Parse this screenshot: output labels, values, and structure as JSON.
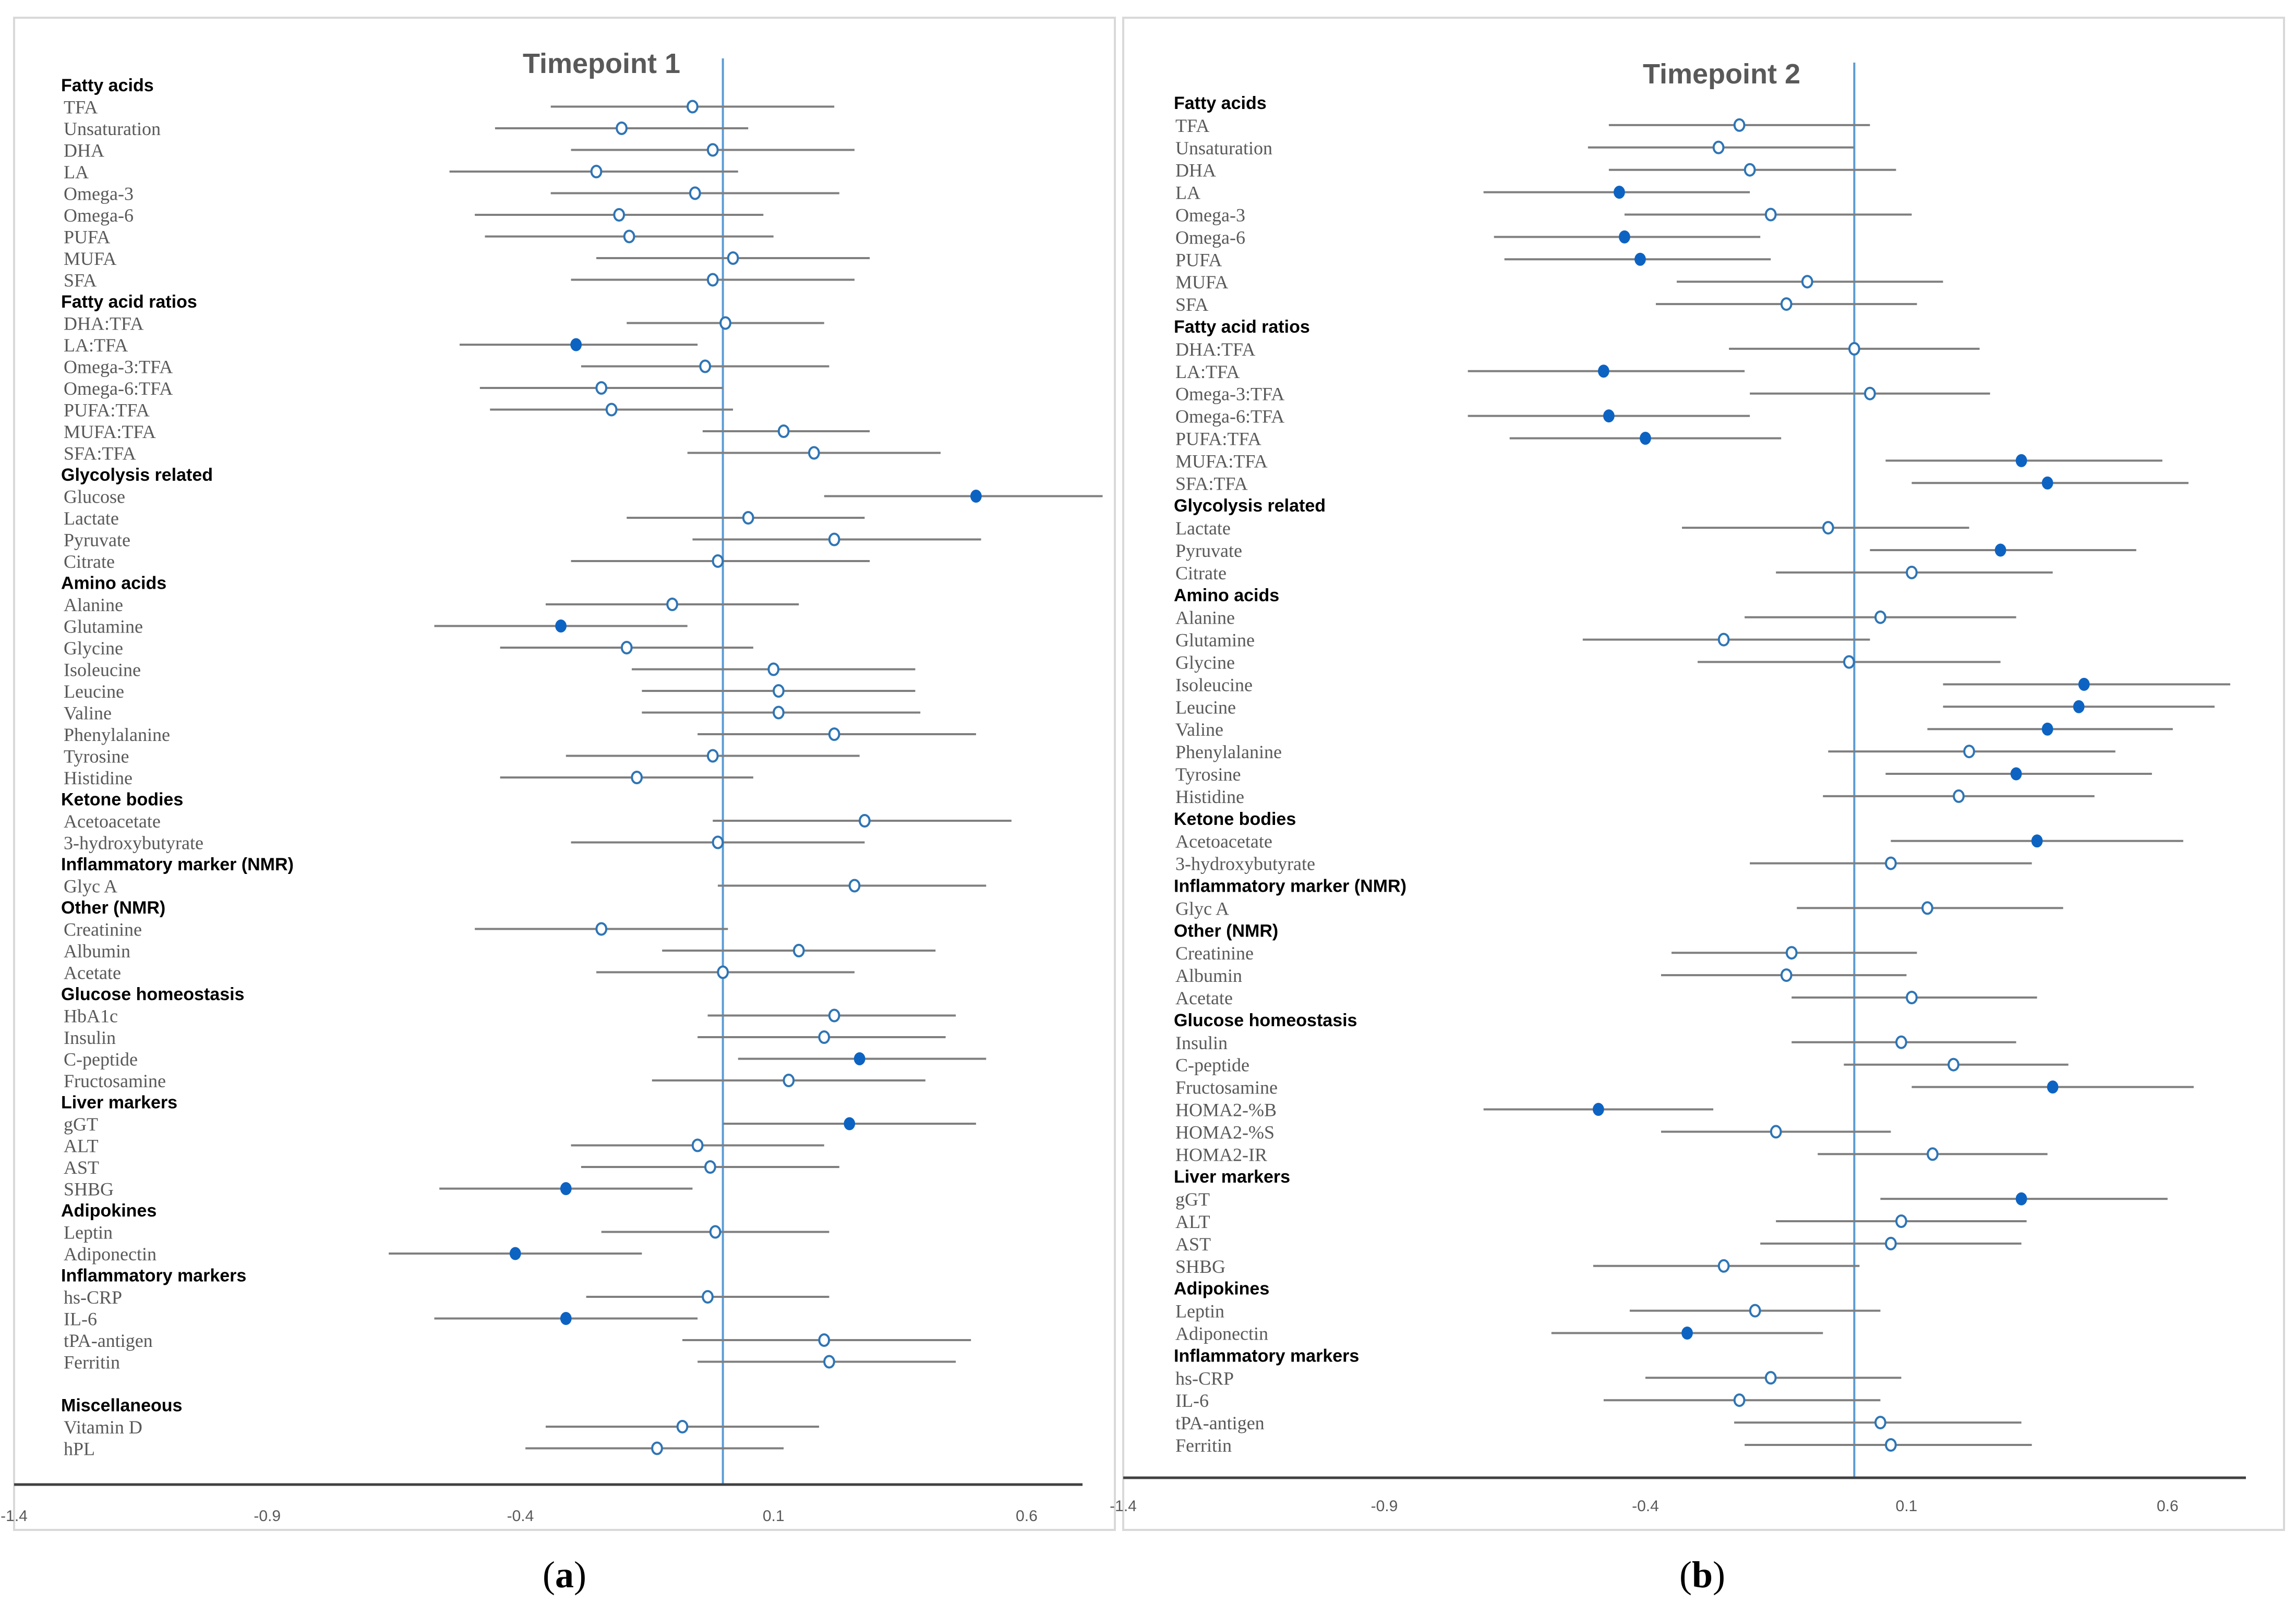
{
  "chart_data": [
    {
      "type": "forest",
      "panel_label": "a",
      "title": "Timepoint 1",
      "xlim": [
        -1.4,
        0.8
      ],
      "xticks": [
        "-1.4",
        "-0.9",
        "-0.4",
        "0.1",
        "0.6"
      ],
      "reference_line": 0.0,
      "rows": [
        {
          "kind": "group",
          "label": "Fatty acids"
        },
        {
          "kind": "row",
          "label": "TFA",
          "est": -0.06,
          "lo": -0.34,
          "hi": 0.22,
          "sig": false
        },
        {
          "kind": "row",
          "label": "Unsaturation",
          "est": -0.2,
          "lo": -0.45,
          "hi": 0.05,
          "sig": false
        },
        {
          "kind": "row",
          "label": "DHA",
          "est": -0.02,
          "lo": -0.3,
          "hi": 0.26,
          "sig": false
        },
        {
          "kind": "row",
          "label": "LA",
          "est": -0.25,
          "lo": -0.54,
          "hi": 0.03,
          "sig": false
        },
        {
          "kind": "row",
          "label": "Omega-3",
          "est": -0.055,
          "lo": -0.34,
          "hi": 0.23,
          "sig": false
        },
        {
          "kind": "row",
          "label": "Omega-6",
          "est": -0.205,
          "lo": -0.49,
          "hi": 0.08,
          "sig": false
        },
        {
          "kind": "row",
          "label": "PUFA",
          "est": -0.185,
          "lo": -0.47,
          "hi": 0.1,
          "sig": false
        },
        {
          "kind": "row",
          "label": "MUFA",
          "est": 0.02,
          "lo": -0.25,
          "hi": 0.29,
          "sig": false
        },
        {
          "kind": "row",
          "label": "SFA",
          "est": -0.02,
          "lo": -0.3,
          "hi": 0.26,
          "sig": false
        },
        {
          "kind": "group",
          "label": "Fatty acid ratios"
        },
        {
          "kind": "row",
          "label": "DHA:TFA",
          "est": 0.005,
          "lo": -0.19,
          "hi": 0.2,
          "sig": false
        },
        {
          "kind": "row",
          "label": "LA:TFA",
          "est": -0.29,
          "lo": -0.52,
          "hi": -0.05,
          "sig": true
        },
        {
          "kind": "row",
          "label": "Omega-3:TFA",
          "est": -0.035,
          "lo": -0.28,
          "hi": 0.21,
          "sig": false
        },
        {
          "kind": "row",
          "label": "Omega-6:TFA",
          "est": -0.24,
          "lo": -0.48,
          "hi": 0.0,
          "sig": false
        },
        {
          "kind": "row",
          "label": "PUFA:TFA",
          "est": -0.22,
          "lo": -0.46,
          "hi": 0.02,
          "sig": false
        },
        {
          "kind": "row",
          "label": "MUFA:TFA",
          "est": 0.12,
          "lo": -0.04,
          "hi": 0.29,
          "sig": false
        },
        {
          "kind": "row",
          "label": "SFA:TFA",
          "est": 0.18,
          "lo": -0.07,
          "hi": 0.43,
          "sig": false
        },
        {
          "kind": "group",
          "label": "Glycolysis related"
        },
        {
          "kind": "row",
          "label": "Glucose",
          "est": 0.5,
          "lo": 0.2,
          "hi": 0.75,
          "sig": true
        },
        {
          "kind": "row",
          "label": "Lactate",
          "est": 0.05,
          "lo": -0.19,
          "hi": 0.28,
          "sig": false
        },
        {
          "kind": "row",
          "label": "Pyruvate",
          "est": 0.22,
          "lo": -0.06,
          "hi": 0.51,
          "sig": false
        },
        {
          "kind": "row",
          "label": "Citrate",
          "est": -0.01,
          "lo": -0.3,
          "hi": 0.29,
          "sig": false
        },
        {
          "kind": "group",
          "label": "Amino acids"
        },
        {
          "kind": "row",
          "label": "Alanine",
          "est": -0.1,
          "lo": -0.35,
          "hi": 0.15,
          "sig": false
        },
        {
          "kind": "row",
          "label": "Glutamine",
          "est": -0.32,
          "lo": -0.57,
          "hi": -0.07,
          "sig": true
        },
        {
          "kind": "row",
          "label": "Glycine",
          "est": -0.19,
          "lo": -0.44,
          "hi": 0.06,
          "sig": false
        },
        {
          "kind": "row",
          "label": "Isoleucine",
          "est": 0.1,
          "lo": -0.18,
          "hi": 0.38,
          "sig": false
        },
        {
          "kind": "row",
          "label": "Leucine",
          "est": 0.11,
          "lo": -0.16,
          "hi": 0.38,
          "sig": false
        },
        {
          "kind": "row",
          "label": "Valine",
          "est": 0.11,
          "lo": -0.16,
          "hi": 0.39,
          "sig": false
        },
        {
          "kind": "row",
          "label": "Phenylalanine",
          "est": 0.22,
          "lo": -0.05,
          "hi": 0.5,
          "sig": false
        },
        {
          "kind": "row",
          "label": "Tyrosine",
          "est": -0.02,
          "lo": -0.31,
          "hi": 0.27,
          "sig": false
        },
        {
          "kind": "row",
          "label": "Histidine",
          "est": -0.17,
          "lo": -0.44,
          "hi": 0.06,
          "sig": false
        },
        {
          "kind": "group",
          "label": "Ketone bodies"
        },
        {
          "kind": "row",
          "label": "Acetoacetate",
          "est": 0.28,
          "lo": -0.02,
          "hi": 0.57,
          "sig": false
        },
        {
          "kind": "row",
          "label": "3-hydroxybutyrate",
          "est": -0.01,
          "lo": -0.3,
          "hi": 0.28,
          "sig": false
        },
        {
          "kind": "group",
          "label": "Inflammatory marker (NMR)"
        },
        {
          "kind": "row",
          "label": "Glyc A",
          "est": 0.26,
          "lo": -0.01,
          "hi": 0.52,
          "sig": false
        },
        {
          "kind": "group",
          "label": "Other (NMR)"
        },
        {
          "kind": "row",
          "label": "Creatinine",
          "est": -0.24,
          "lo": -0.49,
          "hi": 0.01,
          "sig": false
        },
        {
          "kind": "row",
          "label": "Albumin",
          "est": 0.15,
          "lo": -0.12,
          "hi": 0.42,
          "sig": false
        },
        {
          "kind": "row",
          "label": "Acetate",
          "est": 0.0,
          "lo": -0.25,
          "hi": 0.26,
          "sig": false
        },
        {
          "kind": "group",
          "label": "Glucose homeostasis"
        },
        {
          "kind": "row",
          "label": "HbA1c",
          "est": 0.22,
          "lo": -0.03,
          "hi": 0.46,
          "sig": false
        },
        {
          "kind": "row",
          "label": "Insulin",
          "est": 0.2,
          "lo": -0.05,
          "hi": 0.44,
          "sig": false
        },
        {
          "kind": "row",
          "label": "C-peptide",
          "est": 0.27,
          "lo": 0.03,
          "hi": 0.52,
          "sig": true
        },
        {
          "kind": "row",
          "label": "Fructosamine",
          "est": 0.13,
          "lo": -0.14,
          "hi": 0.4,
          "sig": false
        },
        {
          "kind": "group",
          "label": "Liver markers"
        },
        {
          "kind": "row",
          "label": "gGT",
          "est": 0.25,
          "lo": 0.0,
          "hi": 0.5,
          "sig": true
        },
        {
          "kind": "row",
          "label": "ALT",
          "est": -0.05,
          "lo": -0.3,
          "hi": 0.2,
          "sig": false
        },
        {
          "kind": "row",
          "label": "AST",
          "est": -0.025,
          "lo": -0.28,
          "hi": 0.23,
          "sig": false
        },
        {
          "kind": "row",
          "label": "SHBG",
          "est": -0.31,
          "lo": -0.56,
          "hi": -0.06,
          "sig": true
        },
        {
          "kind": "group",
          "label": "Adipokines"
        },
        {
          "kind": "row",
          "label": "Leptin",
          "est": -0.015,
          "lo": -0.24,
          "hi": 0.21,
          "sig": false
        },
        {
          "kind": "row",
          "label": "Adiponectin",
          "est": -0.41,
          "lo": -0.66,
          "hi": -0.16,
          "sig": true
        },
        {
          "kind": "group",
          "label": "Inflammatory markers"
        },
        {
          "kind": "row",
          "label": "hs-CRP",
          "est": -0.03,
          "lo": -0.27,
          "hi": 0.21,
          "sig": false
        },
        {
          "kind": "row",
          "label": "IL-6",
          "est": -0.31,
          "lo": -0.57,
          "hi": -0.05,
          "sig": true
        },
        {
          "kind": "row",
          "label": "tPA-antigen",
          "est": 0.2,
          "lo": -0.08,
          "hi": 0.49,
          "sig": false
        },
        {
          "kind": "row",
          "label": "Ferritin",
          "est": 0.21,
          "lo": -0.05,
          "hi": 0.46,
          "sig": false
        },
        {
          "kind": "spacer"
        },
        {
          "kind": "group",
          "label": "Miscellaneous"
        },
        {
          "kind": "row",
          "label": "Vitamin D",
          "est": -0.08,
          "lo": -0.35,
          "hi": 0.19,
          "sig": false
        },
        {
          "kind": "row",
          "label": "hPL",
          "est": -0.13,
          "lo": -0.39,
          "hi": 0.12,
          "sig": false
        }
      ]
    },
    {
      "type": "forest",
      "panel_label": "b",
      "title": "Timepoint 2",
      "xlim": [
        -1.4,
        0.75
      ],
      "xticks": [
        "-1.4",
        "-0.9",
        "-0.4",
        "0.1",
        "0.6"
      ],
      "reference_line": 0.0,
      "rows": [
        {
          "kind": "group",
          "label": "Fatty acids"
        },
        {
          "kind": "row",
          "label": "TFA",
          "est": -0.22,
          "lo": -0.47,
          "hi": 0.03,
          "sig": false
        },
        {
          "kind": "row",
          "label": "Unsaturation",
          "est": -0.26,
          "lo": -0.51,
          "hi": 0.0,
          "sig": false
        },
        {
          "kind": "row",
          "label": "DHA",
          "est": -0.2,
          "lo": -0.47,
          "hi": 0.08,
          "sig": false
        },
        {
          "kind": "row",
          "label": "LA",
          "est": -0.45,
          "lo": -0.71,
          "hi": -0.2,
          "sig": true
        },
        {
          "kind": "row",
          "label": "Omega-3",
          "est": -0.16,
          "lo": -0.44,
          "hi": 0.11,
          "sig": false
        },
        {
          "kind": "row",
          "label": "Omega-6",
          "est": -0.44,
          "lo": -0.69,
          "hi": -0.18,
          "sig": true
        },
        {
          "kind": "row",
          "label": "PUFA",
          "est": -0.41,
          "lo": -0.67,
          "hi": -0.16,
          "sig": true
        },
        {
          "kind": "row",
          "label": "MUFA",
          "est": -0.09,
          "lo": -0.34,
          "hi": 0.17,
          "sig": false
        },
        {
          "kind": "row",
          "label": "SFA",
          "est": -0.13,
          "lo": -0.38,
          "hi": 0.12,
          "sig": false
        },
        {
          "kind": "group",
          "label": "Fatty acid ratios"
        },
        {
          "kind": "row",
          "label": "DHA:TFA",
          "est": 0.0,
          "lo": -0.24,
          "hi": 0.24,
          "sig": false
        },
        {
          "kind": "row",
          "label": "LA:TFA",
          "est": -0.48,
          "lo": -0.74,
          "hi": -0.21,
          "sig": true
        },
        {
          "kind": "row",
          "label": "Omega-3:TFA",
          "est": 0.03,
          "lo": -0.2,
          "hi": 0.26,
          "sig": false
        },
        {
          "kind": "row",
          "label": "Omega-6:TFA",
          "est": -0.47,
          "lo": -0.74,
          "hi": -0.2,
          "sig": true
        },
        {
          "kind": "row",
          "label": "PUFA:TFA",
          "est": -0.4,
          "lo": -0.66,
          "hi": -0.14,
          "sig": true
        },
        {
          "kind": "row",
          "label": "MUFA:TFA",
          "est": 0.32,
          "lo": 0.06,
          "hi": 0.59,
          "sig": true
        },
        {
          "kind": "row",
          "label": "SFA:TFA",
          "est": 0.37,
          "lo": 0.11,
          "hi": 0.64,
          "sig": true
        },
        {
          "kind": "group",
          "label": "Glycolysis related"
        },
        {
          "kind": "row",
          "label": "Lactate",
          "est": -0.05,
          "lo": -0.33,
          "hi": 0.22,
          "sig": false
        },
        {
          "kind": "row",
          "label": "Pyruvate",
          "est": 0.28,
          "lo": 0.03,
          "hi": 0.54,
          "sig": true
        },
        {
          "kind": "row",
          "label": "Citrate",
          "est": 0.11,
          "lo": -0.15,
          "hi": 0.38,
          "sig": false
        },
        {
          "kind": "group",
          "label": "Amino acids"
        },
        {
          "kind": "row",
          "label": "Alanine",
          "est": 0.05,
          "lo": -0.21,
          "hi": 0.31,
          "sig": false
        },
        {
          "kind": "row",
          "label": "Glutamine",
          "est": -0.25,
          "lo": -0.52,
          "hi": 0.03,
          "sig": false
        },
        {
          "kind": "row",
          "label": "Glycine",
          "est": -0.01,
          "lo": -0.3,
          "hi": 0.28,
          "sig": false
        },
        {
          "kind": "row",
          "label": "Isoleucine",
          "est": 0.44,
          "lo": 0.17,
          "hi": 0.72,
          "sig": true
        },
        {
          "kind": "row",
          "label": "Leucine",
          "est": 0.43,
          "lo": 0.17,
          "hi": 0.69,
          "sig": true
        },
        {
          "kind": "row",
          "label": "Valine",
          "est": 0.37,
          "lo": 0.14,
          "hi": 0.61,
          "sig": true
        },
        {
          "kind": "row",
          "label": "Phenylalanine",
          "est": 0.22,
          "lo": -0.05,
          "hi": 0.5,
          "sig": false
        },
        {
          "kind": "row",
          "label": "Tyrosine",
          "est": 0.31,
          "lo": 0.06,
          "hi": 0.57,
          "sig": true
        },
        {
          "kind": "row",
          "label": "Histidine",
          "est": 0.2,
          "lo": -0.06,
          "hi": 0.46,
          "sig": false
        },
        {
          "kind": "group",
          "label": "Ketone bodies"
        },
        {
          "kind": "row",
          "label": "Acetoacetate",
          "est": 0.35,
          "lo": 0.07,
          "hi": 0.63,
          "sig": true
        },
        {
          "kind": "row",
          "label": "3-hydroxybutyrate",
          "est": 0.07,
          "lo": -0.2,
          "hi": 0.34,
          "sig": false
        },
        {
          "kind": "group",
          "label": "Inflammatory marker (NMR)"
        },
        {
          "kind": "row",
          "label": "Glyc A",
          "est": 0.14,
          "lo": -0.11,
          "hi": 0.4,
          "sig": false
        },
        {
          "kind": "group",
          "label": "Other (NMR)"
        },
        {
          "kind": "row",
          "label": "Creatinine",
          "est": -0.12,
          "lo": -0.35,
          "hi": 0.12,
          "sig": false
        },
        {
          "kind": "row",
          "label": "Albumin",
          "est": -0.13,
          "lo": -0.37,
          "hi": 0.1,
          "sig": false
        },
        {
          "kind": "row",
          "label": "Acetate",
          "est": 0.11,
          "lo": -0.12,
          "hi": 0.35,
          "sig": false
        },
        {
          "kind": "group",
          "label": "Glucose homeostasis"
        },
        {
          "kind": "row",
          "label": "Insulin",
          "est": 0.09,
          "lo": -0.12,
          "hi": 0.31,
          "sig": false
        },
        {
          "kind": "row",
          "label": "C-peptide",
          "est": 0.19,
          "lo": -0.02,
          "hi": 0.41,
          "sig": false
        },
        {
          "kind": "row",
          "label": "Fructosamine",
          "est": 0.38,
          "lo": 0.11,
          "hi": 0.65,
          "sig": true
        },
        {
          "kind": "row",
          "label": "HOMA2-%B",
          "est": -0.49,
          "lo": -0.71,
          "hi": -0.27,
          "sig": true
        },
        {
          "kind": "row",
          "label": "HOMA2-%S",
          "est": -0.15,
          "lo": -0.37,
          "hi": 0.07,
          "sig": false
        },
        {
          "kind": "row",
          "label": "HOMA2-IR",
          "est": 0.15,
          "lo": -0.07,
          "hi": 0.37,
          "sig": false
        },
        {
          "kind": "group",
          "label": "Liver markers"
        },
        {
          "kind": "row",
          "label": "gGT",
          "est": 0.32,
          "lo": 0.05,
          "hi": 0.6,
          "sig": true
        },
        {
          "kind": "row",
          "label": "ALT",
          "est": 0.09,
          "lo": -0.15,
          "hi": 0.33,
          "sig": false
        },
        {
          "kind": "row",
          "label": "AST",
          "est": 0.07,
          "lo": -0.18,
          "hi": 0.32,
          "sig": false
        },
        {
          "kind": "row",
          "label": "SHBG",
          "est": -0.25,
          "lo": -0.5,
          "hi": 0.01,
          "sig": false
        },
        {
          "kind": "group",
          "label": "Adipokines"
        },
        {
          "kind": "row",
          "label": "Leptin",
          "est": -0.19,
          "lo": -0.43,
          "hi": 0.05,
          "sig": false
        },
        {
          "kind": "row",
          "label": "Adiponectin",
          "est": -0.32,
          "lo": -0.58,
          "hi": -0.06,
          "sig": true
        },
        {
          "kind": "group",
          "label": "Inflammatory markers"
        },
        {
          "kind": "row",
          "label": "hs-CRP",
          "est": -0.16,
          "lo": -0.4,
          "hi": 0.09,
          "sig": false
        },
        {
          "kind": "row",
          "label": "IL-6",
          "est": -0.22,
          "lo": -0.48,
          "hi": 0.05,
          "sig": false
        },
        {
          "kind": "row",
          "label": "tPA-antigen",
          "est": 0.05,
          "lo": -0.23,
          "hi": 0.32,
          "sig": false
        },
        {
          "kind": "row",
          "label": "Ferritin",
          "est": 0.07,
          "lo": -0.21,
          "hi": 0.34,
          "sig": false
        }
      ]
    }
  ],
  "colors": {
    "ci_line": "#7f7f7f",
    "zero_line": "#5b9bd5",
    "open_marker": "#2e75b6",
    "filled_marker": "#0d63c2"
  }
}
